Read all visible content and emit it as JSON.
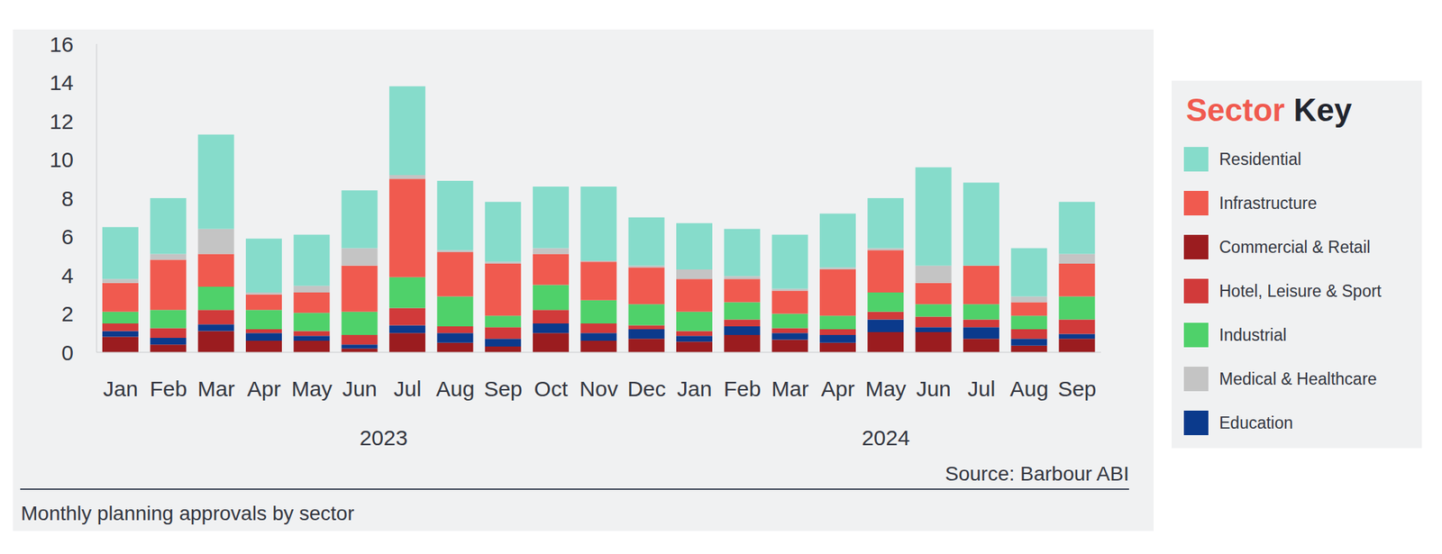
{
  "chart_data": {
    "type": "bar",
    "title": "Monthly planning approvals by sector",
    "source": "Source: Barbour ABI",
    "legend_title": "Sector Key",
    "legend": "right",
    "stacked": true,
    "grid": false,
    "categories": [
      "Jan",
      "Feb",
      "Mar",
      "Apr",
      "May",
      "Jun",
      "Jul",
      "Aug",
      "Sep",
      "Oct",
      "Nov",
      "Dec",
      "Jan",
      "Feb",
      "Mar",
      "Apr",
      "May",
      "Jun",
      "Jul",
      "Aug",
      "Sep"
    ],
    "x_groups": [
      {
        "label": "2023",
        "categories": [
          "Jan",
          "Feb",
          "Mar",
          "Apr",
          "May",
          "Jun",
          "Jul",
          "Aug",
          "Sep",
          "Oct",
          "Nov",
          "Dec"
        ]
      },
      {
        "label": "2024",
        "categories": [
          "Jan",
          "Feb",
          "Mar",
          "Apr",
          "May",
          "Jun",
          "Jul",
          "Aug",
          "Sep"
        ]
      }
    ],
    "ylim": [
      0,
      16
    ],
    "yticks": [
      0,
      2,
      4,
      6,
      8,
      10,
      12,
      14,
      16
    ],
    "series": [
      {
        "name": "Residential",
        "color": "#86dccb",
        "values": [
          2.7,
          2.9,
          4.9,
          2.8,
          2.65,
          3.0,
          4.6,
          3.6,
          3.1,
          3.2,
          3.85,
          2.5,
          2.4,
          2.45,
          2.8,
          2.8,
          2.6,
          5.1,
          4.3,
          2.5,
          2.7
        ]
      },
      {
        "name": "Infrastructure",
        "color": "#f05a4f",
        "values": [
          1.5,
          2.6,
          1.7,
          0.8,
          1.05,
          2.4,
          5.1,
          2.3,
          2.7,
          1.6,
          2.0,
          1.9,
          1.7,
          1.2,
          1.2,
          2.4,
          2.2,
          1.1,
          2.0,
          0.7,
          1.7
        ]
      },
      {
        "name": "Commercial & Retail",
        "color": "#9b1c1f",
        "values": [
          0.8,
          0.4,
          1.1,
          0.6,
          0.6,
          0.2,
          1.0,
          0.5,
          0.3,
          1.0,
          0.6,
          0.7,
          0.55,
          0.9,
          0.65,
          0.5,
          1.05,
          1.05,
          0.7,
          0.35,
          0.7
        ]
      },
      {
        "name": "Hotel, Leisure & Sport",
        "color": "#d13a3a",
        "values": [
          0.4,
          0.5,
          0.75,
          0.2,
          0.25,
          0.5,
          0.9,
          0.35,
          0.6,
          0.7,
          0.5,
          0.2,
          0.25,
          0.35,
          0.25,
          0.3,
          0.4,
          0.55,
          0.4,
          0.5,
          0.75
        ]
      },
      {
        "name": "Industrial",
        "color": "#4fd16a",
        "values": [
          0.6,
          0.95,
          1.2,
          1.0,
          0.95,
          1.2,
          1.6,
          1.55,
          0.6,
          1.3,
          1.2,
          1.1,
          1.0,
          0.9,
          0.75,
          0.7,
          1.0,
          0.65,
          0.8,
          0.7,
          1.2
        ]
      },
      {
        "name": "Medical & Healthcare",
        "color": "#c4c4c4",
        "values": [
          0.2,
          0.3,
          1.3,
          0.1,
          0.35,
          0.9,
          0.2,
          0.1,
          0.1,
          0.3,
          0.05,
          0.1,
          0.5,
          0.15,
          0.1,
          0.1,
          0.1,
          0.9,
          0,
          0.3,
          0.5
        ]
      },
      {
        "name": "Education",
        "color": "#0b3a8c",
        "values": [
          0.3,
          0.35,
          0.35,
          0.4,
          0.25,
          0.2,
          0.4,
          0.5,
          0.4,
          0.5,
          0.4,
          0.5,
          0.3,
          0.45,
          0.35,
          0.4,
          0.65,
          0.25,
          0.6,
          0.35,
          0.25
        ]
      }
    ]
  }
}
